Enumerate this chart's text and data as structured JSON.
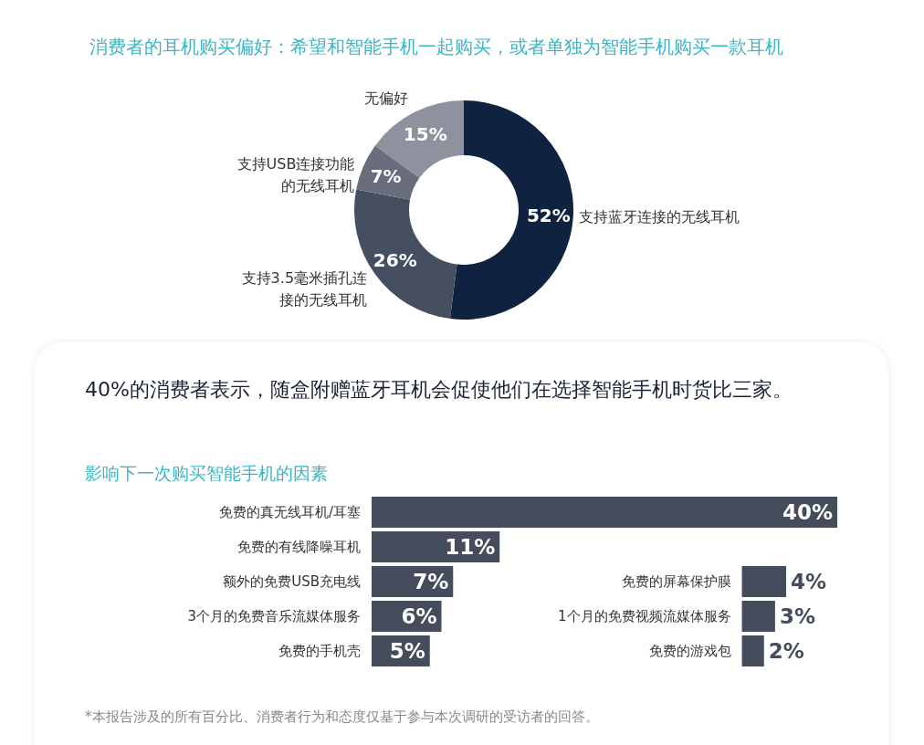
{
  "chart_data": [
    {
      "type": "donut",
      "title": "消费者的耳机购买偏好：希望和智能手机一起购买，或者单独为智能手机购买一款耳机",
      "categories": [
        "支持蓝牙连接的无线耳机",
        "支持3.5毫米插孔连接的无线耳机",
        "支持USB连接功能的无线耳机",
        "无偏好"
      ],
      "values": [
        52,
        26,
        7,
        15
      ],
      "colors": [
        "#0f2240",
        "#454f60",
        "#6a6e7c",
        "#8e929e"
      ],
      "value_labels": [
        "52%",
        "26%",
        "7%",
        "15%"
      ]
    },
    {
      "type": "bar",
      "orientation": "horizontal",
      "subtitle": "40%的消费者表示，随盒附赠蓝牙耳机会促使他们在选择智能手机时货比三家。",
      "title": "影响下一次购买智能手机的因素",
      "categories": [
        "免费的真无线耳机/耳塞",
        "免费的有线降噪耳机",
        "额外的免费USB充电线",
        "3个月的免费音乐流媒体服务",
        "免费的手机壳"
      ],
      "values": [
        40,
        11,
        7,
        6,
        5
      ],
      "color": "#454d5c",
      "value_labels": [
        "40%",
        "11%",
        "7%",
        "6%",
        "5%"
      ],
      "xlim": [
        0,
        40
      ],
      "tick_labels": false,
      "annotations": [
        "*本报告涉及的所有百分比、消费者行为和态度仅基于参与本次调研的受访者的回答。"
      ]
    },
    {
      "type": "bar",
      "orientation": "horizontal",
      "categories": [
        "免费的屏幕保护膜",
        "1个月的免费视频流媒体服务",
        "免费的游戏包"
      ],
      "values": [
        4,
        3,
        2
      ],
      "color": "#454d5c",
      "value_labels": [
        "4%",
        "3%",
        "2%"
      ],
      "tick_labels": false
    }
  ]
}
